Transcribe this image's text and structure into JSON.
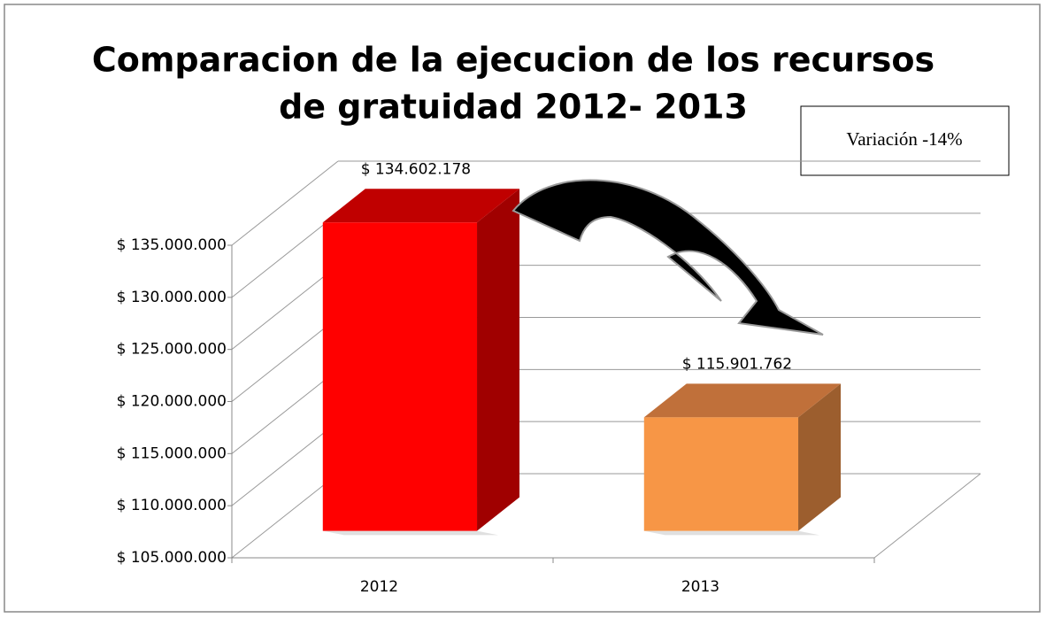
{
  "chart_data": {
    "type": "bar3d",
    "title": [
      "Comparacion  de la ejecucion de los recursos",
      "de gratuidad 2012- 2013"
    ],
    "annotation": "Variación -14%",
    "categories": [
      "2012",
      "2013"
    ],
    "values": [
      134602178,
      115901762
    ],
    "value_labels": [
      "$ 134.602.178",
      "$ 115.901.762"
    ],
    "colors": [
      {
        "front": "#ff0000",
        "top": "#c00000",
        "side": "#a00000"
      },
      {
        "front": "#f79646",
        "top": "#c0703a",
        "side": "#9c5e2e"
      }
    ],
    "ylim": [
      105000000,
      135000000
    ],
    "yticks": [
      {
        "value": 105000000,
        "label": "$ 105.000.000"
      },
      {
        "value": 110000000,
        "label": "$ 110.000.000"
      },
      {
        "value": 115000000,
        "label": "$ 115.000.000"
      },
      {
        "value": 120000000,
        "label": "$ 120.000.000"
      },
      {
        "value": 125000000,
        "label": "$ 125.000.000"
      },
      {
        "value": 130000000,
        "label": "$ 130.000.000"
      },
      {
        "value": 135000000,
        "label": "$ 135.000.000"
      }
    ],
    "grid": true
  }
}
